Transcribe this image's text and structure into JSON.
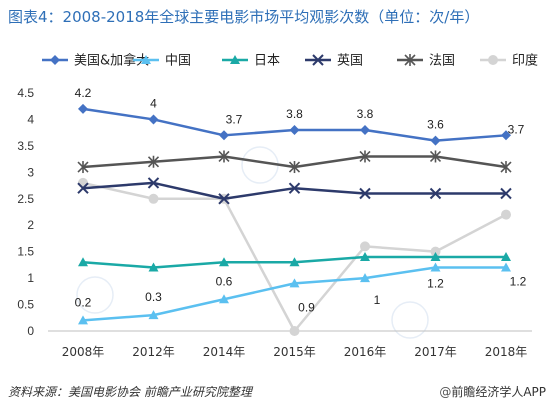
{
  "title": "图表4：2008-2018年全球主要电影市场平均观影次数（单位：次/年）",
  "source": "资料来源：美国电影协会 前瞻产业研究院整理",
  "brand": "前瞻经济学人APP",
  "chart_data": {
    "type": "line",
    "categories": [
      "2008年",
      "2012年",
      "2014年",
      "2015年",
      "2016年",
      "2017年",
      "2018年"
    ],
    "ylim": [
      0,
      4.5
    ],
    "yticks": [
      "0",
      "0.5",
      "1",
      "1.5",
      "2",
      "2.5",
      "3",
      "3.5",
      "4",
      "4.5"
    ],
    "ytick_values": [
      0,
      0.5,
      1,
      1.5,
      2,
      2.5,
      3,
      3.5,
      4,
      4.5
    ],
    "legend_position": "top",
    "series": [
      {
        "name": "美国&加拿大",
        "color": "#4472c4",
        "marker": "diamond",
        "values": [
          4.2,
          4.0,
          3.7,
          3.8,
          3.8,
          3.6,
          3.7
        ],
        "labels": [
          "4.2",
          "4",
          "3.7",
          "3.8",
          "3.8",
          "3.6",
          "3.7"
        ]
      },
      {
        "name": "中国",
        "color": "#5bc0f0",
        "marker": "triangle",
        "values": [
          0.2,
          0.3,
          0.6,
          0.9,
          1.0,
          1.2,
          1.2
        ],
        "labels": [
          "0.2",
          "0.3",
          "0.6",
          "0.9",
          "1",
          "1.2",
          "1.2"
        ]
      },
      {
        "name": "日本",
        "color": "#1aa9a6",
        "marker": "triangle",
        "values": [
          1.3,
          1.2,
          1.3,
          1.3,
          1.4,
          1.4,
          1.4
        ]
      },
      {
        "name": "英国",
        "color": "#2d3a6b",
        "marker": "x",
        "values": [
          2.7,
          2.8,
          2.5,
          2.7,
          2.6,
          2.6,
          2.6
        ]
      },
      {
        "name": "法国",
        "color": "#555555",
        "marker": "star",
        "values": [
          3.1,
          3.2,
          3.3,
          3.1,
          3.3,
          3.3,
          3.1
        ]
      },
      {
        "name": "印度",
        "color": "#d4d4d4",
        "marker": "circle",
        "values": [
          2.8,
          2.5,
          2.5,
          0.0,
          1.6,
          1.5,
          2.2
        ]
      }
    ]
  }
}
